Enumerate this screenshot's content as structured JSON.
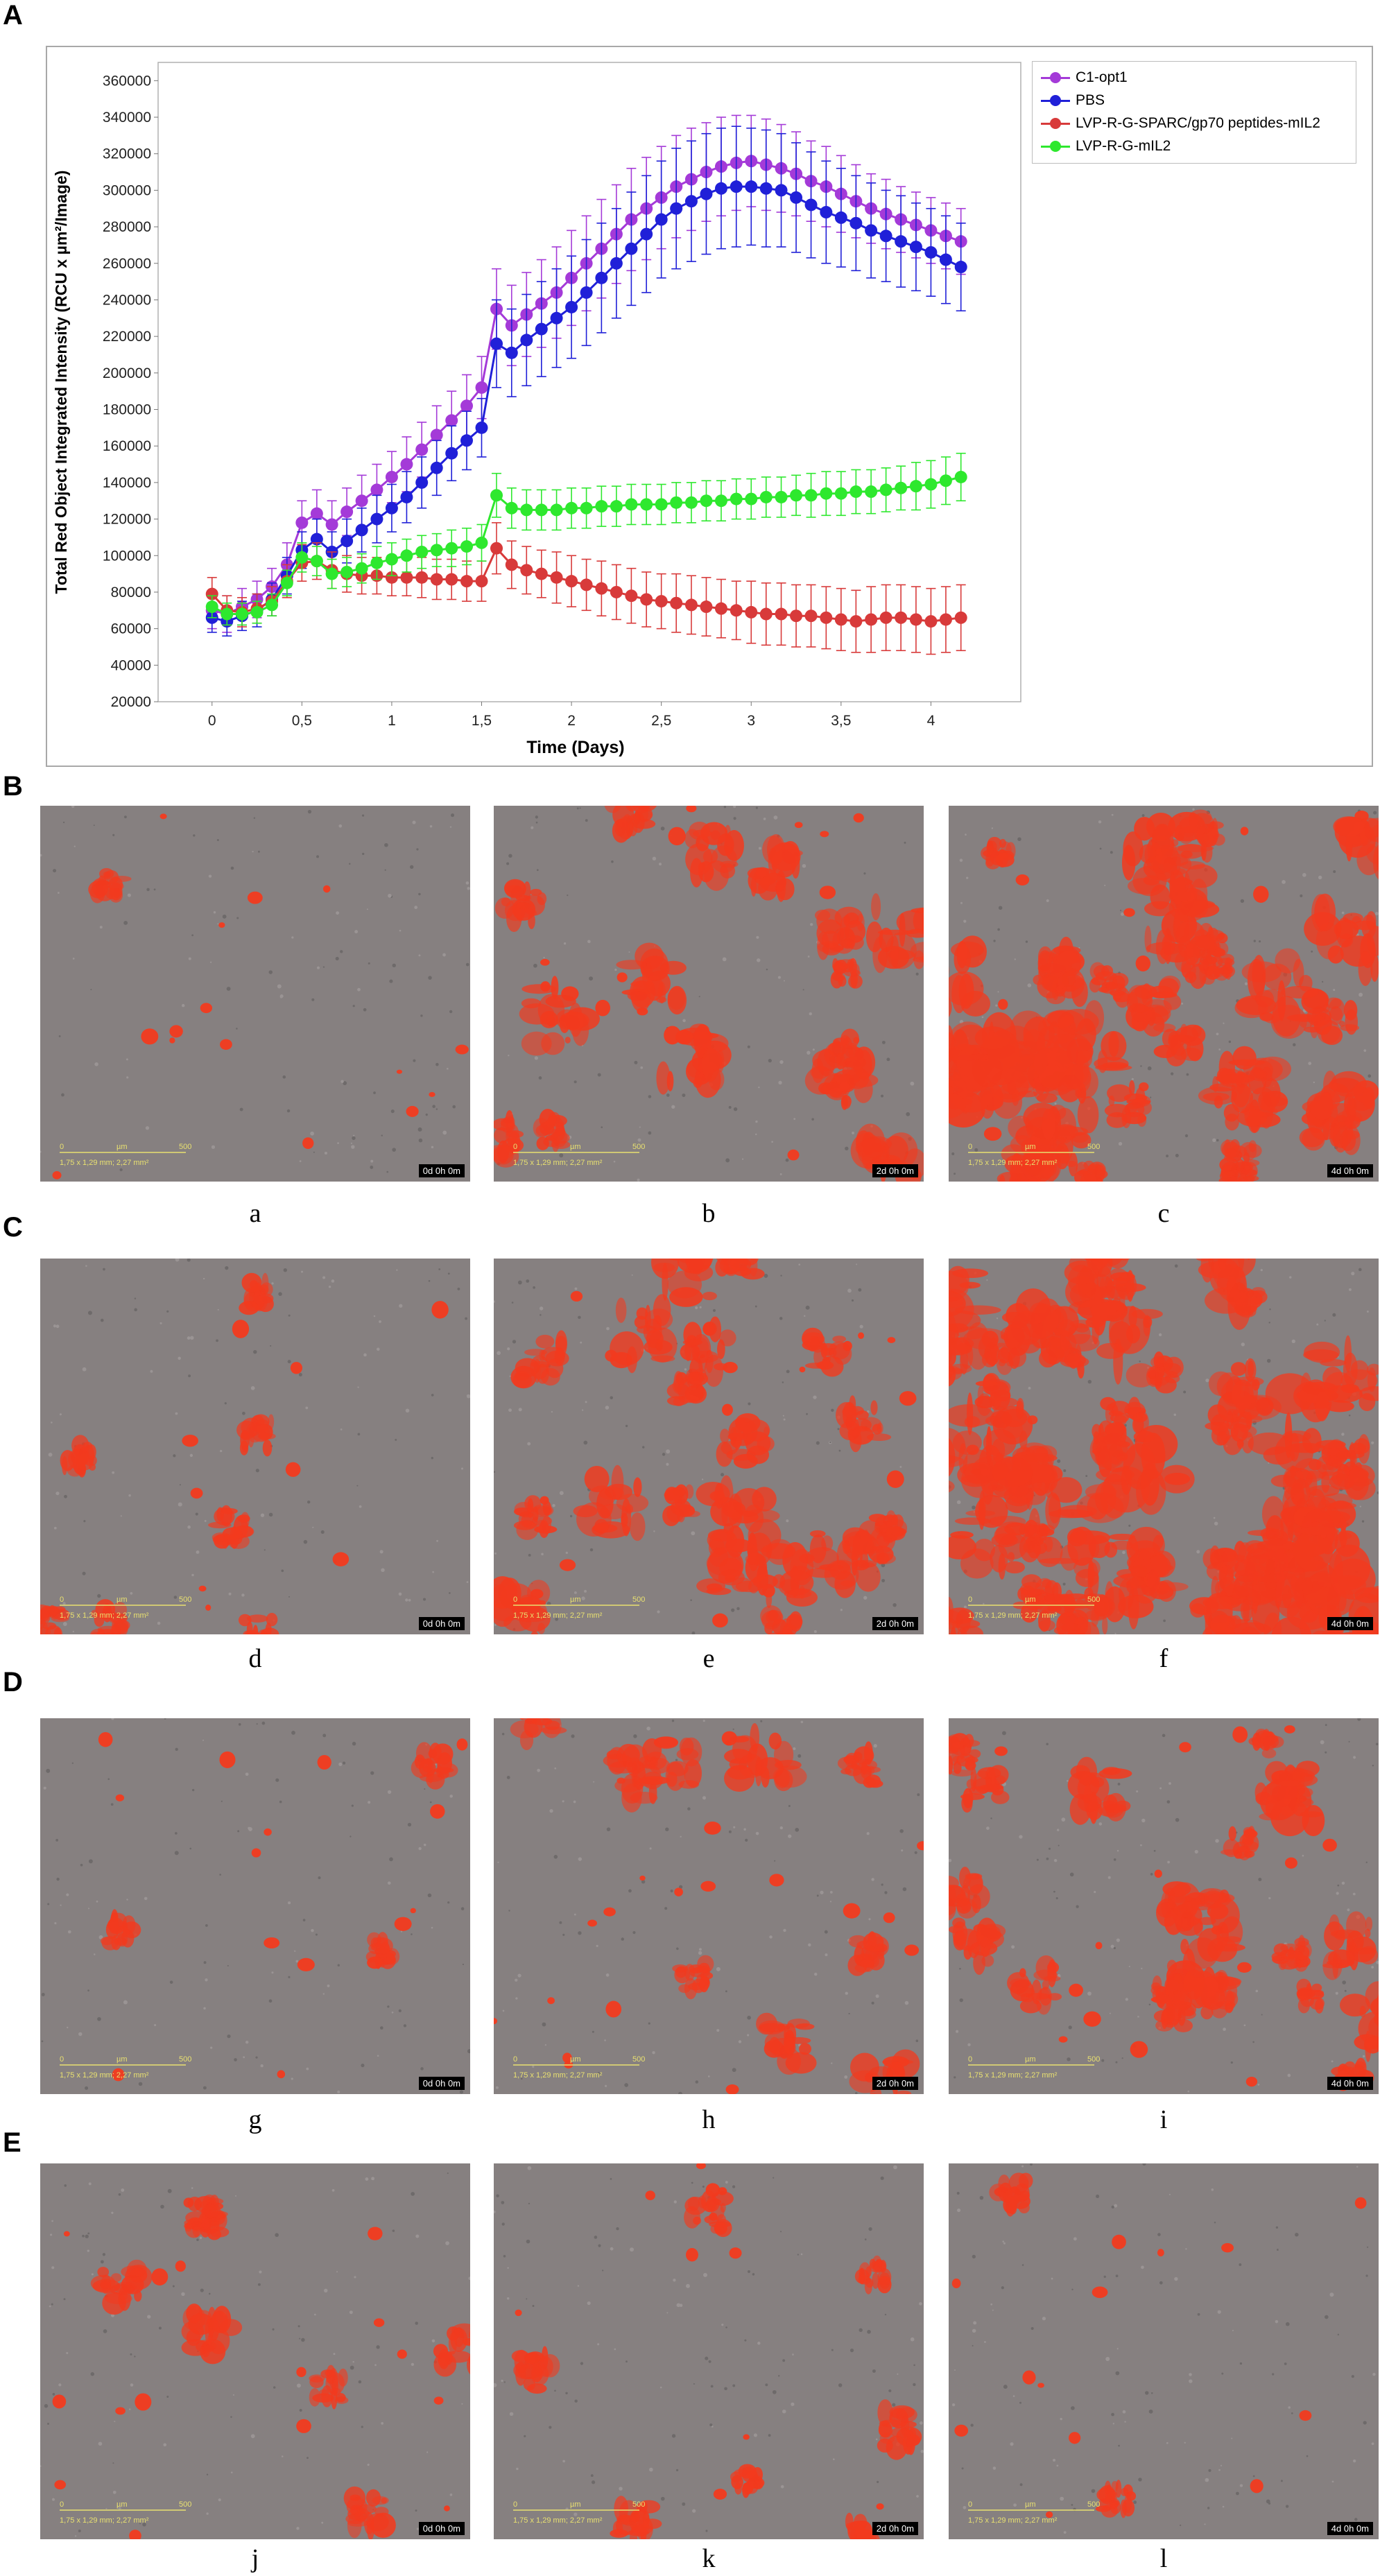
{
  "panels": {
    "A": "A",
    "B": "B",
    "C": "C",
    "D": "D",
    "E": "E"
  },
  "chart_data": {
    "type": "line",
    "xlabel": "Time (Days)",
    "ylabel": "Total Red Object Integrated Intensity (RCU x µm²/Image)",
    "xlim": [
      -0.3,
      4.5
    ],
    "ylim": [
      20000,
      370000
    ],
    "xticks": [
      "0",
      "0,5",
      "1",
      "1,5",
      "2",
      "2,5",
      "3",
      "3,5",
      "4"
    ],
    "xtick_values": [
      0,
      0.5,
      1,
      1.5,
      2,
      2.5,
      3,
      3.5,
      4
    ],
    "yticks": [
      "20000",
      "40000",
      "60000",
      "80000",
      "100000",
      "120000",
      "140000",
      "160000",
      "180000",
      "200000",
      "220000",
      "240000",
      "260000",
      "280000",
      "300000",
      "320000",
      "340000",
      "360000"
    ],
    "ytick_values": [
      20000,
      40000,
      60000,
      80000,
      100000,
      120000,
      140000,
      160000,
      180000,
      200000,
      220000,
      240000,
      260000,
      280000,
      300000,
      320000,
      340000,
      360000
    ],
    "legend_position": "top-right",
    "grid": false,
    "x": [
      0,
      0.083,
      0.167,
      0.25,
      0.333,
      0.417,
      0.5,
      0.583,
      0.667,
      0.75,
      0.833,
      0.917,
      1,
      1.083,
      1.167,
      1.25,
      1.333,
      1.417,
      1.5,
      1.583,
      1.667,
      1.75,
      1.833,
      1.917,
      2,
      2.083,
      2.167,
      2.25,
      2.333,
      2.417,
      2.5,
      2.583,
      2.667,
      2.75,
      2.833,
      2.917,
      3,
      3.083,
      3.167,
      3.25,
      3.333,
      3.417,
      3.5,
      3.583,
      3.667,
      3.75,
      3.833,
      3.917,
      4,
      4.083,
      4.167
    ],
    "series": [
      {
        "name": "C1-opt1",
        "color": "#a43ad8",
        "values": [
          70000,
          68000,
          72000,
          76000,
          83000,
          95000,
          118000,
          123000,
          117000,
          124000,
          130000,
          136000,
          143000,
          150000,
          158000,
          166000,
          174000,
          182000,
          192000,
          235000,
          226000,
          232000,
          238000,
          244000,
          252000,
          260000,
          268000,
          276000,
          284000,
          290000,
          296000,
          302000,
          306000,
          310000,
          313000,
          315000,
          316000,
          314000,
          312000,
          309000,
          305000,
          302000,
          298000,
          294000,
          290000,
          287000,
          284000,
          281000,
          278000,
          275000,
          272000
        ],
        "errors": [
          10000,
          10000,
          10000,
          10000,
          10000,
          12000,
          12000,
          13000,
          13000,
          13000,
          14000,
          14000,
          14000,
          15000,
          15000,
          16000,
          16000,
          17000,
          17000,
          22000,
          22000,
          23000,
          24000,
          25000,
          26000,
          26000,
          27000,
          27000,
          28000,
          28000,
          28000,
          28000,
          28000,
          27000,
          27000,
          26000,
          25000,
          25000,
          24000,
          23000,
          22000,
          22000,
          21000,
          20000,
          19000,
          19000,
          18000,
          18000,
          18000,
          18000,
          18000
        ]
      },
      {
        "name": "PBS",
        "color": "#2020d8",
        "values": [
          66000,
          64000,
          67000,
          70000,
          76000,
          89000,
          103000,
          109000,
          102000,
          108000,
          114000,
          120000,
          126000,
          132000,
          140000,
          148000,
          156000,
          163000,
          170000,
          216000,
          211000,
          218000,
          224000,
          230000,
          236000,
          244000,
          252000,
          260000,
          268000,
          276000,
          284000,
          290000,
          294000,
          298000,
          301000,
          302000,
          302000,
          301000,
          300000,
          296000,
          292000,
          288000,
          285000,
          282000,
          278000,
          275000,
          272000,
          269000,
          266000,
          262000,
          258000
        ],
        "errors": [
          8000,
          8000,
          8000,
          9000,
          9000,
          10000,
          10000,
          11000,
          11000,
          12000,
          12000,
          13000,
          13000,
          14000,
          14000,
          15000,
          15000,
          16000,
          16000,
          24000,
          24000,
          25000,
          26000,
          27000,
          28000,
          29000,
          30000,
          30000,
          31000,
          32000,
          32000,
          33000,
          33000,
          33000,
          33000,
          33000,
          32000,
          32000,
          31000,
          30000,
          29000,
          28000,
          27000,
          26000,
          26000,
          25000,
          25000,
          24000,
          24000,
          24000,
          24000
        ]
      },
      {
        "name": "LVP-R-G-SPARC/gp70 peptides-mIL2",
        "color": "#d83a3a",
        "values": [
          79000,
          70000,
          69000,
          71000,
          75000,
          86000,
          96000,
          97000,
          92000,
          90000,
          89000,
          89000,
          88000,
          88000,
          88000,
          87000,
          87000,
          86000,
          86000,
          104000,
          95000,
          92000,
          90000,
          88000,
          86000,
          84000,
          82000,
          80000,
          78000,
          76000,
          75000,
          74000,
          73000,
          72000,
          71000,
          70000,
          69000,
          68000,
          68000,
          67000,
          67000,
          66000,
          65000,
          64000,
          65000,
          66000,
          66000,
          65000,
          64000,
          65000,
          66000
        ],
        "errors": [
          9000,
          8000,
          8000,
          8000,
          8000,
          9000,
          10000,
          10000,
          10000,
          10000,
          10000,
          10000,
          10000,
          10000,
          11000,
          11000,
          11000,
          11000,
          11000,
          14000,
          13000,
          13000,
          13000,
          14000,
          14000,
          14000,
          15000,
          15000,
          15000,
          15000,
          15000,
          16000,
          16000,
          16000,
          16000,
          16000,
          17000,
          17000,
          17000,
          17000,
          17000,
          17000,
          17000,
          17000,
          18000,
          18000,
          18000,
          18000,
          18000,
          18000,
          18000
        ]
      },
      {
        "name": "LVP-R-G-mIL2",
        "color": "#2ee82e",
        "values": [
          72000,
          68000,
          68000,
          69000,
          73000,
          85000,
          99000,
          97000,
          90000,
          91000,
          93000,
          96000,
          98000,
          100000,
          102000,
          103000,
          104000,
          105000,
          107000,
          133000,
          126000,
          125000,
          125000,
          125000,
          126000,
          126000,
          127000,
          127000,
          128000,
          128000,
          128000,
          129000,
          129000,
          130000,
          130000,
          131000,
          131000,
          132000,
          132000,
          133000,
          133000,
          134000,
          134000,
          135000,
          135000,
          136000,
          137000,
          138000,
          139000,
          141000,
          143000
        ],
        "errors": [
          6000,
          6000,
          6000,
          6000,
          6000,
          7000,
          8000,
          8000,
          8000,
          8000,
          8000,
          9000,
          9000,
          9000,
          9000,
          9000,
          10000,
          10000,
          10000,
          12000,
          11000,
          11000,
          11000,
          11000,
          11000,
          11000,
          11000,
          11000,
          11000,
          11000,
          11000,
          11000,
          11000,
          11000,
          11000,
          11000,
          11000,
          11000,
          11000,
          11000,
          12000,
          12000,
          12000,
          12000,
          12000,
          12000,
          12000,
          13000,
          13000,
          13000,
          13000
        ]
      }
    ]
  },
  "micrographs": {
    "scale_um": "µm",
    "scale_500": "500",
    "scale_0": "0",
    "field_size": "1,75 x 1,29 mm; 2,27 mm²",
    "rows": [
      {
        "panel": "B",
        "items": [
          {
            "label": "a",
            "time": "0d 0h 0m"
          },
          {
            "label": "b",
            "time": "2d 0h 0m"
          },
          {
            "label": "c",
            "time": "4d 0h 0m"
          }
        ]
      },
      {
        "panel": "C",
        "items": [
          {
            "label": "d",
            "time": "0d 0h 0m"
          },
          {
            "label": "e",
            "time": "2d 0h 0m"
          },
          {
            "label": "f",
            "time": "4d 0h 0m"
          }
        ]
      },
      {
        "panel": "D",
        "items": [
          {
            "label": "g",
            "time": "0d 0h 0m"
          },
          {
            "label": "h",
            "time": "2d 0h 0m"
          },
          {
            "label": "i",
            "time": "4d 0h 0m"
          }
        ]
      },
      {
        "panel": "E",
        "items": [
          {
            "label": "j",
            "time": "0d 0h 0m"
          },
          {
            "label": "k",
            "time": "2d 0h 0m"
          },
          {
            "label": "l",
            "time": "4d 0h 0m"
          }
        ]
      }
    ]
  },
  "colors": {
    "micrograph_bg": "#868080",
    "cell_red": "#f23a1e",
    "scale_bar": "#e8e070"
  }
}
